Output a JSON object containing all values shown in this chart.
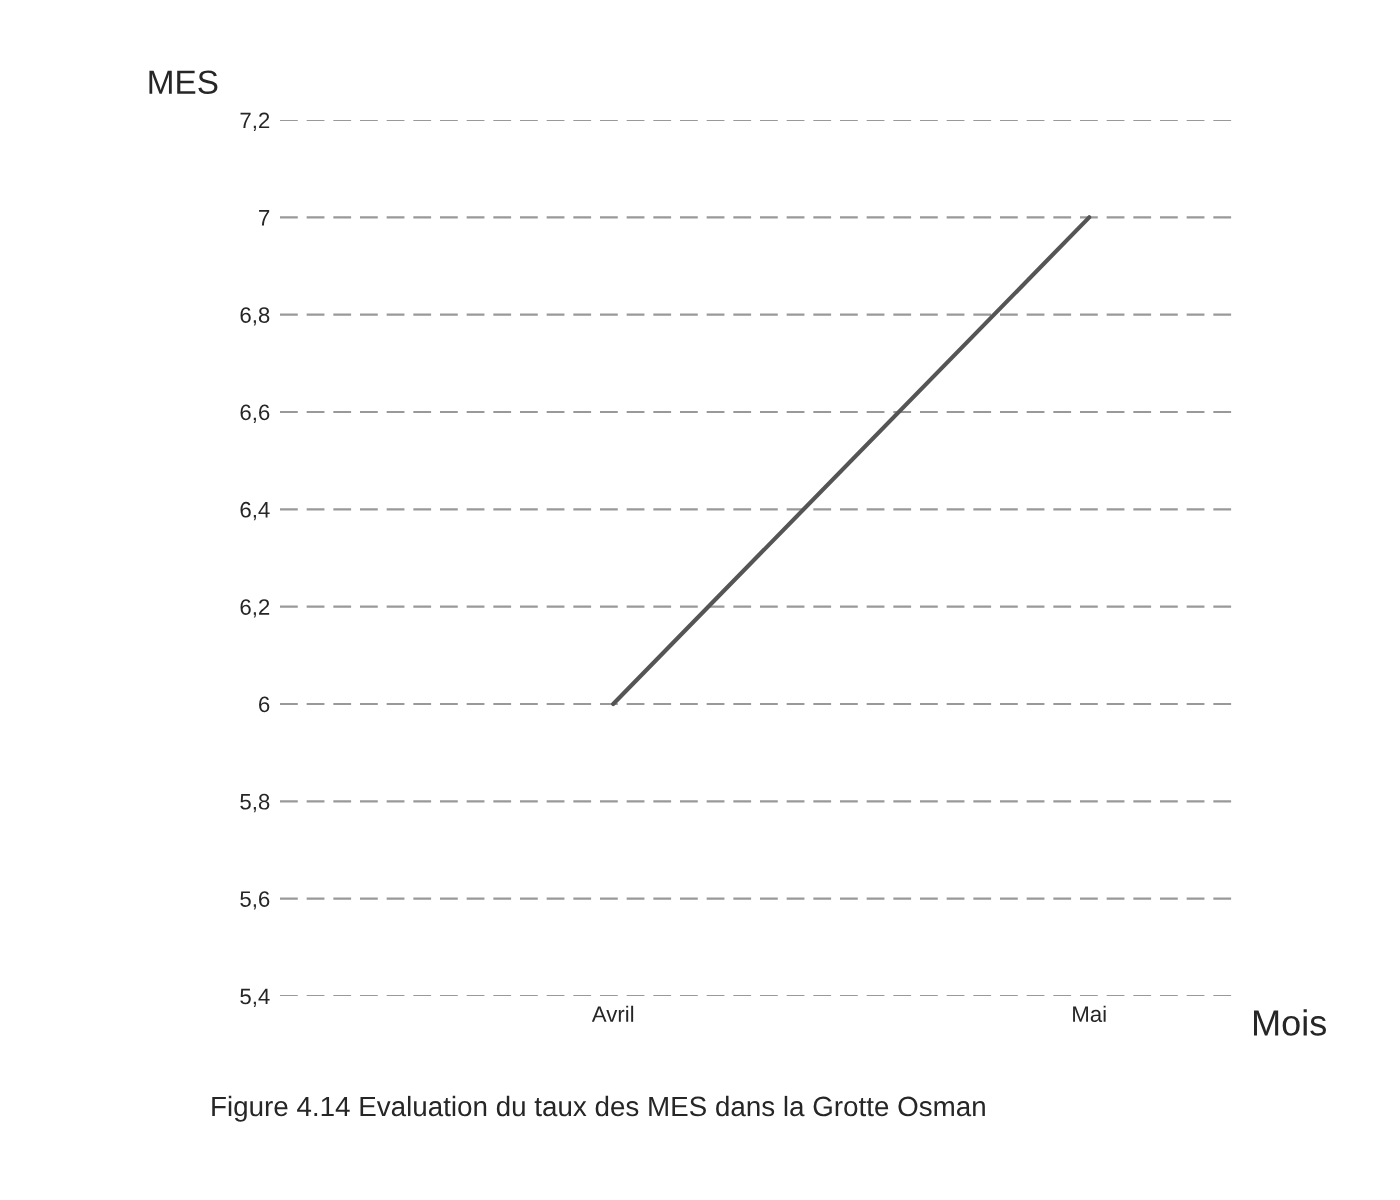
{
  "chart_data": {
    "type": "line",
    "ylabel": "MES",
    "xlabel": "Mois",
    "categories": [
      "Avril",
      "Mai"
    ],
    "series": [
      {
        "color": "#555555",
        "values": [
          6,
          7
        ]
      }
    ],
    "ylim": [
      5.4,
      7.2
    ],
    "yticks": [
      {
        "value": 5.4,
        "label": "5,4"
      },
      {
        "value": 5.6,
        "label": "5,6"
      },
      {
        "value": 5.8,
        "label": "5,8"
      },
      6,
      {
        "value": 6.2,
        "label": "6,2"
      },
      {
        "value": 6.4,
        "label": "6,4"
      },
      {
        "value": 6.6,
        "label": "6,6"
      },
      {
        "value": 6.8,
        "label": "6,8"
      },
      7,
      {
        "value": 7.2,
        "label": "7,2"
      }
    ],
    "grid": "y",
    "marker": "none",
    "line_style": "solid",
    "annotations": [
      "Figure 4.14 Evaluation du taux des MES dans la Grotte Osman"
    ]
  }
}
